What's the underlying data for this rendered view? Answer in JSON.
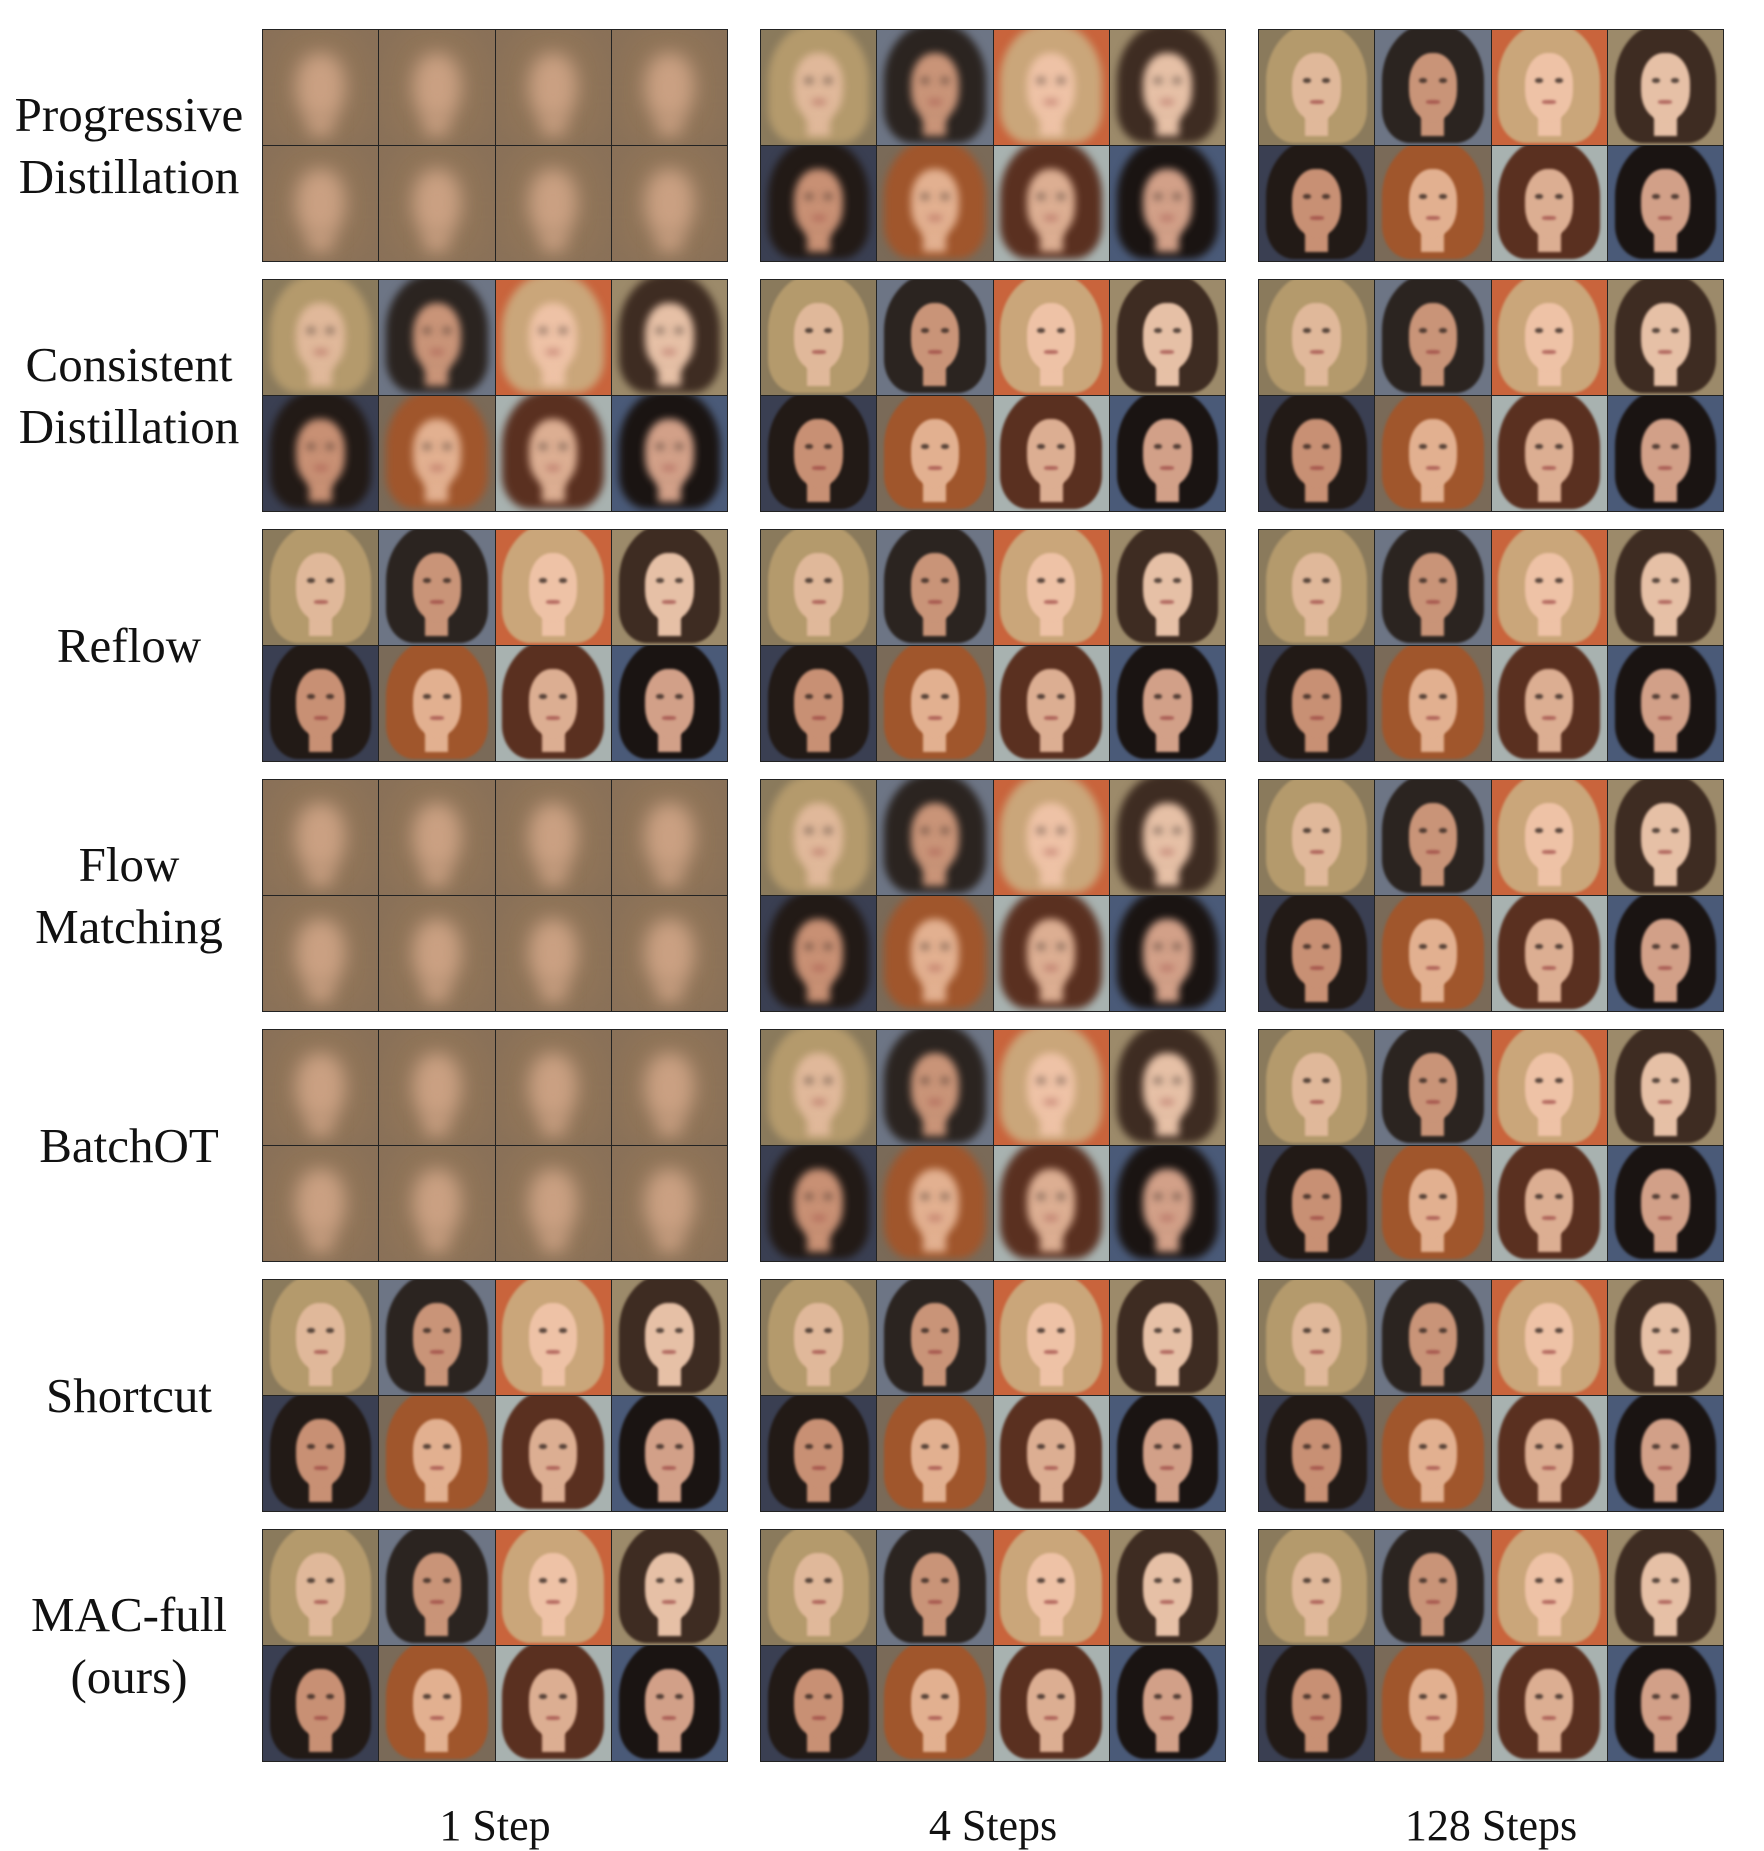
{
  "columns": [
    "1 Step",
    "4 Steps",
    "128 Steps"
  ],
  "rows": [
    {
      "label": [
        "Progressive",
        "Distillation"
      ],
      "quality": [
        "blur-heavy",
        "blur-light",
        "sharp"
      ],
      "avg1": true
    },
    {
      "label": [
        "Consistent",
        "Distillation"
      ],
      "quality": [
        "blur-light",
        "sharp",
        "sharp"
      ],
      "avg1": false
    },
    {
      "label": [
        "Reflow"
      ],
      "quality": [
        "sharp",
        "sharp",
        "sharp"
      ],
      "avg1": false
    },
    {
      "label": [
        "Flow",
        "Matching"
      ],
      "quality": [
        "blur-heavy",
        "blur-light",
        "sharp"
      ],
      "avg1": true
    },
    {
      "label": [
        "BatchOT"
      ],
      "quality": [
        "blur-heavy",
        "blur-light",
        "sharp"
      ],
      "avg1": true
    },
    {
      "label": [
        "Shortcut"
      ],
      "quality": [
        "sharp",
        "sharp",
        "sharp"
      ],
      "avg1": false
    },
    {
      "label": [
        "MAC-full",
        "(ours)"
      ],
      "quality": [
        "sharp",
        "sharp",
        "sharp"
      ],
      "avg1": false
    }
  ],
  "faces": [
    {
      "name": "face-1",
      "bg": "#8a7a5c",
      "hair": "#b49a6c",
      "skin": "#e0b89a"
    },
    {
      "name": "face-2",
      "bg": "#6d7585",
      "hair": "#2b2420",
      "skin": "#c99478"
    },
    {
      "name": "face-3",
      "bg": "#c9643c",
      "hair": "#caa67a",
      "skin": "#eec2a6"
    },
    {
      "name": "face-4",
      "bg": "#9c8a6a",
      "hair": "#3e2c22",
      "skin": "#e6c0a6"
    },
    {
      "name": "face-5",
      "bg": "#3a3f52",
      "hair": "#221a16",
      "skin": "#c89074"
    },
    {
      "name": "face-6",
      "bg": "#7a6a58",
      "hair": "#a0562c",
      "skin": "#e2b090"
    },
    {
      "name": "face-7",
      "bg": "#a8b2b0",
      "hair": "#5a3020",
      "skin": "#dcae92"
    },
    {
      "name": "face-8",
      "bg": "#4a5a78",
      "hair": "#1a1412",
      "skin": "#d2a088"
    }
  ]
}
